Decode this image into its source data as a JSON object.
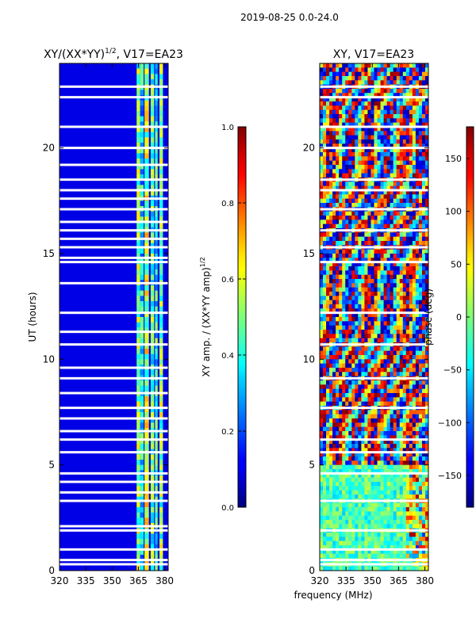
{
  "figure": {
    "suptitle": "2019-08-25 0.0-24.0",
    "shared_xlabel": "frequency (MHz)",
    "colors": {
      "frame": "#000000",
      "gap": "#ffffff"
    }
  },
  "chart_data": [
    {
      "type": "heatmap",
      "title_main": "XY/(XX*YY)",
      "title_sup": "1/2",
      "title_tail": ", V17=EA23",
      "ylabel": "UT (hours)",
      "xlabel": "",
      "xlim": [
        320,
        382
      ],
      "ylim": [
        0,
        24
      ],
      "x_ticks": [
        320,
        335,
        350,
        365,
        380
      ],
      "y_ticks": [
        0,
        5,
        10,
        15,
        20
      ],
      "colorbar": {
        "label_main": "XY amp. / (XX*YY amp)",
        "label_sup": "1/2",
        "range": [
          0.0,
          1.0
        ],
        "ticks": [
          "0.0",
          "0.2",
          "0.4",
          "0.6",
          "0.8",
          "1.0"
        ],
        "tick_values": [
          0.0,
          0.2,
          0.4,
          0.6,
          0.8,
          1.0
        ]
      },
      "background_value": 0.1,
      "bands": [
        {
          "x0": 364,
          "x1": 366,
          "value": 0.5
        },
        {
          "x0": 366,
          "x1": 368,
          "value": 0.35
        },
        {
          "x0": 368.5,
          "x1": 371,
          "value": 0.55
        },
        {
          "x0": 372,
          "x1": 374,
          "value": 0.45
        },
        {
          "x0": 374.5,
          "x1": 376,
          "value": 0.4
        },
        {
          "x0": 377,
          "x1": 379,
          "value": 0.5
        }
      ],
      "gaps_hours": [
        0.3,
        0.5,
        1.0,
        1.9,
        2.1,
        3.3,
        3.7,
        4.2,
        4.6,
        5.6,
        6.2,
        6.6,
        7.2,
        7.7,
        8.4,
        9.1,
        9.6,
        10.7,
        11.3,
        12.2,
        13.6,
        14.6,
        14.8,
        15.3,
        15.7,
        16.1,
        16.5,
        17.1,
        17.6,
        18.0,
        18.5,
        19.2,
        20.0,
        21.0,
        22.4,
        22.9
      ]
    },
    {
      "type": "heatmap",
      "title": "XY, V17=EA23",
      "ylabel": "",
      "xlabel": "",
      "xlim": [
        320,
        382
      ],
      "ylim": [
        0,
        24
      ],
      "x_ticks": [
        320,
        335,
        350,
        365,
        380
      ],
      "y_ticks": [
        0,
        5,
        10,
        15,
        20
      ],
      "colorbar": {
        "label": "phase (deg)",
        "range": [
          -180,
          180
        ],
        "ticks": [
          "150",
          "100",
          "50",
          "0",
          "−50",
          "−100",
          "−150"
        ],
        "tick_values": [
          150,
          100,
          50,
          0,
          -50,
          -100,
          -150
        ]
      },
      "gaps_hours": [
        0.3,
        0.5,
        1.0,
        1.9,
        3.3,
        4.6,
        5.6,
        6.2,
        7.7,
        9.1,
        10.7,
        12.2,
        14.6,
        15.3,
        16.1,
        17.1,
        18.0,
        18.5,
        20.0,
        21.0,
        22.4,
        22.9
      ]
    }
  ]
}
